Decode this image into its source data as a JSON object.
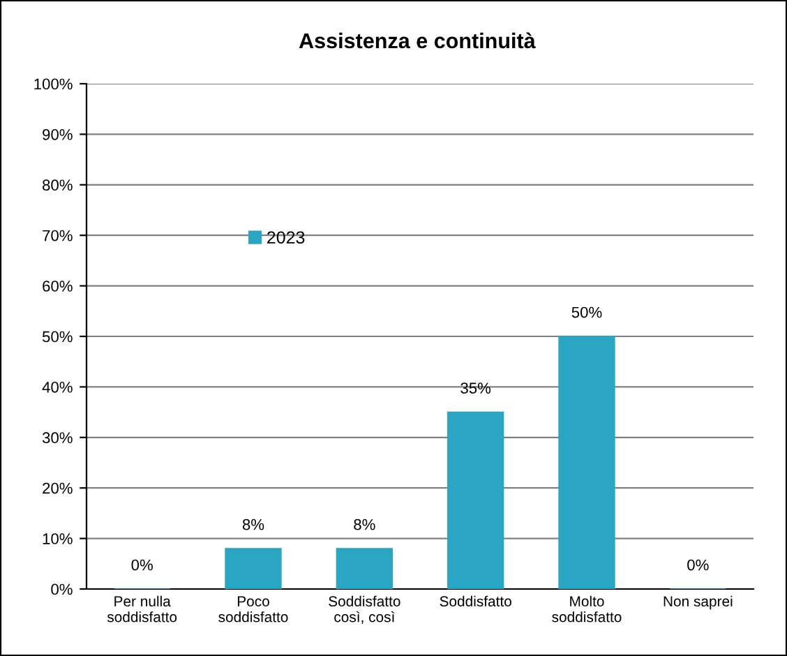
{
  "chart_data": {
    "type": "bar",
    "title": "Assistenza e continuità",
    "categories": [
      "Per nulla\nsoddisfatto",
      "Poco\nsoddisfatto",
      "Soddisfatto\ncosì, così",
      "Soddisfatto",
      "Molto\nsoddisfatto",
      "Non saprei"
    ],
    "series": [
      {
        "name": "2023",
        "color": "#2aa5c3",
        "values": [
          0,
          8,
          8,
          35,
          50,
          0
        ]
      }
    ],
    "value_labels": [
      "0%",
      "8%",
      "8%",
      "35%",
      "50%",
      "0%"
    ],
    "ylim": [
      0,
      100
    ],
    "yticks": [
      {
        "value": 0,
        "label": "0%"
      },
      {
        "value": 10,
        "label": "10%"
      },
      {
        "value": 20,
        "label": "20%"
      },
      {
        "value": 30,
        "label": "30%"
      },
      {
        "value": 40,
        "label": "40%"
      },
      {
        "value": 50,
        "label": "50%"
      },
      {
        "value": 60,
        "label": "60%"
      },
      {
        "value": 70,
        "label": "70%"
      },
      {
        "value": 80,
        "label": "80%"
      },
      {
        "value": 90,
        "label": "90%"
      },
      {
        "value": 100,
        "label": "100%"
      }
    ],
    "grid": "y",
    "legend": "top left"
  }
}
